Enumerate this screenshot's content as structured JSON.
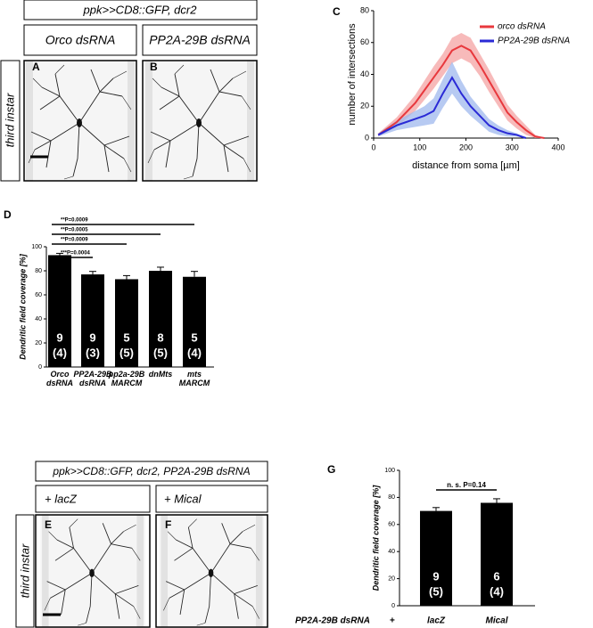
{
  "panel_labels": [
    "A",
    "B",
    "C",
    "D",
    "E",
    "F",
    "G"
  ],
  "top_images": {
    "genotype": "ppk>>CD8::GFP, dcr2",
    "columns": [
      "Orco dsRNA",
      "PP2A-29B dsRNA"
    ],
    "row_label": "third instar"
  },
  "bottom_images": {
    "genotype": "ppk>>CD8::GFP, dcr2, PP2A-29B dsRNA",
    "columns": [
      "+ lacZ",
      "+ Mical"
    ],
    "row_label": "third instar"
  },
  "chart_data": [
    {
      "type": "line",
      "xlabel": "distance from soma [µm]",
      "ylabel": "number of intersections",
      "x": [
        10,
        30,
        50,
        70,
        90,
        110,
        130,
        150,
        170,
        190,
        210,
        230,
        250,
        270,
        290,
        310,
        330,
        350,
        370
      ],
      "xlim": [
        0,
        400
      ],
      "xticks": [
        0,
        100,
        200,
        300,
        400
      ],
      "ylim": [
        0,
        80
      ],
      "yticks": [
        0,
        20,
        40,
        60,
        80
      ],
      "legend": "upper right",
      "series": [
        {
          "name": "orco dsRNA",
          "color": "#e8383d",
          "band_color": "#f4a3a3",
          "values": [
            2,
            6,
            10,
            16,
            22,
            30,
            38,
            46,
            55,
            58,
            55,
            46,
            36,
            26,
            16,
            10,
            5,
            1,
            0
          ],
          "errors": [
            1,
            2,
            3,
            4,
            5,
            6,
            7,
            7,
            8,
            8,
            8,
            7,
            7,
            6,
            5,
            4,
            3,
            1,
            0
          ]
        },
        {
          "name": "PP2A-29B dsRNA",
          "color": "#2a2ad6",
          "band_color": "#9fb8ee",
          "values": [
            2,
            5,
            8,
            10,
            12,
            14,
            17,
            28,
            38,
            28,
            20,
            14,
            8,
            5,
            3,
            2,
            0,
            null,
            null
          ],
          "errors": [
            1,
            2,
            3,
            4,
            5,
            6,
            8,
            9,
            10,
            8,
            6,
            5,
            4,
            3,
            2,
            1,
            0,
            null,
            null
          ]
        }
      ]
    },
    {
      "type": "bar",
      "ylabel": "Dendritic field coverage [%]",
      "categories": [
        "Orco dsRNA",
        "PP2A-29B dsRNA",
        "pp2a-29B MARCM",
        "dnMts",
        "mts MARCM"
      ],
      "values": [
        93,
        77,
        73,
        80,
        75
      ],
      "errors": [
        1.5,
        2.5,
        3,
        3,
        4.5
      ],
      "color": "#000000",
      "ylim": [
        0,
        100
      ],
      "yticks": [
        0,
        20,
        40,
        60,
        80,
        100
      ],
      "n_neurons": [
        9,
        9,
        5,
        8,
        5
      ],
      "n_animals": [
        "(4)",
        "(3)",
        "(5)",
        "(5)",
        "(4)"
      ],
      "comparisons": [
        "***P=0.0004",
        "**P=0.0009",
        "**P=0.0005",
        "**P=0.0009"
      ]
    },
    {
      "type": "bar",
      "ylabel": "Dendritic field coverage [%]",
      "row_label": "PP2A-29B dsRNA",
      "row_marker": "+",
      "categories": [
        "lacZ",
        "Mical"
      ],
      "values": [
        70,
        76
      ],
      "errors": [
        2.5,
        3
      ],
      "color": "#000000",
      "ylim": [
        0,
        100
      ],
      "yticks": [
        0,
        20,
        40,
        60,
        80,
        100
      ],
      "n_neurons": [
        9,
        6
      ],
      "n_animals": [
        "(5)",
        "(4)"
      ],
      "comparisons": [
        "n. s. P=0.14"
      ]
    }
  ]
}
